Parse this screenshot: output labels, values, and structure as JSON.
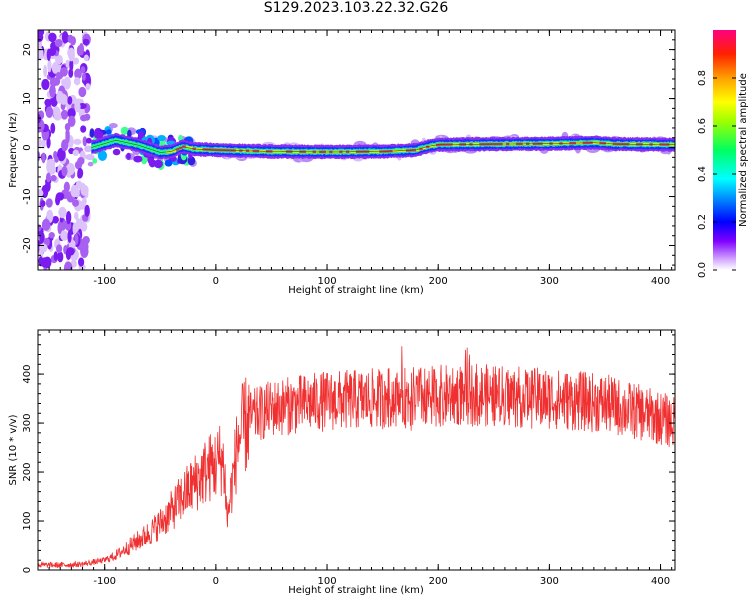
{
  "title": "S129.2023.103.22.32.G26",
  "colors": {
    "snr_line": "#f03030",
    "axes": "#000000",
    "ridge": "#00c840"
  },
  "chart_data": [
    {
      "type": "heatmap",
      "title": "S129.2023.103.22.32.G26",
      "xlabel": "Height of straight line (km)",
      "ylabel": "Frequency (Hz)",
      "xlim": [
        -160,
        413
      ],
      "ylim": [
        -25,
        24
      ],
      "xticks": [
        -100,
        0,
        100,
        200,
        300,
        400
      ],
      "yticks": [
        -20,
        -10,
        0,
        10,
        20
      ],
      "xtick_labels": [
        "-100",
        "0",
        "100",
        "200",
        "300",
        "400"
      ],
      "ytick_labels": [
        "-20",
        "-10",
        "0",
        "10",
        "20"
      ],
      "colorbar": {
        "label": "Normalized spectral amplitude",
        "range": [
          0,
          1
        ],
        "ticks": [
          0.0,
          0.2,
          0.4,
          0.6,
          0.8
        ],
        "tick_labels": [
          "0.0",
          "0.2",
          "0.4",
          "0.6",
          "0.8"
        ],
        "colormap": "rainbow"
      },
      "ridge": {
        "x": [
          -112,
          -90,
          -70,
          -50,
          -40,
          -30,
          -20,
          0,
          50,
          100,
          150,
          180,
          190,
          200,
          250,
          300,
          340,
          360,
          413
        ],
        "y": [
          0.0,
          1.5,
          0.5,
          -1.0,
          -0.8,
          0.2,
          -0.3,
          -0.5,
          -0.8,
          -0.9,
          -0.8,
          -0.5,
          0.2,
          0.6,
          0.7,
          0.8,
          1.0,
          0.7,
          0.6
        ]
      }
    },
    {
      "type": "line",
      "xlabel": "Height of straight line (km)",
      "ylabel": "SNR (10 * v/v)",
      "xlim": [
        -160,
        413
      ],
      "ylim": [
        0,
        490
      ],
      "xticks": [
        -100,
        0,
        100,
        200,
        300,
        400
      ],
      "yticks": [
        0,
        100,
        200,
        300,
        400
      ],
      "xtick_labels": [
        "-100",
        "0",
        "100",
        "200",
        "300",
        "400"
      ],
      "ytick_labels": [
        "0",
        "100",
        "200",
        "300",
        "400"
      ],
      "series": [
        {
          "x": [
            -160,
            -140,
            -120,
            -100,
            -90,
            -80,
            -70,
            -60,
            -50,
            -40,
            -30,
            -20,
            -10,
            -5,
            0,
            5,
            8,
            10,
            20,
            30,
            50,
            80,
            100,
            150,
            200,
            230,
            250,
            300,
            350,
            400,
            413
          ],
          "values": [
            10,
            10,
            12,
            20,
            30,
            45,
            60,
            75,
            95,
            120,
            150,
            175,
            200,
            210,
            215,
            230,
            200,
            100,
            265,
            310,
            330,
            340,
            345,
            350,
            355,
            360,
            355,
            350,
            340,
            310,
            300
          ]
        }
      ]
    }
  ]
}
